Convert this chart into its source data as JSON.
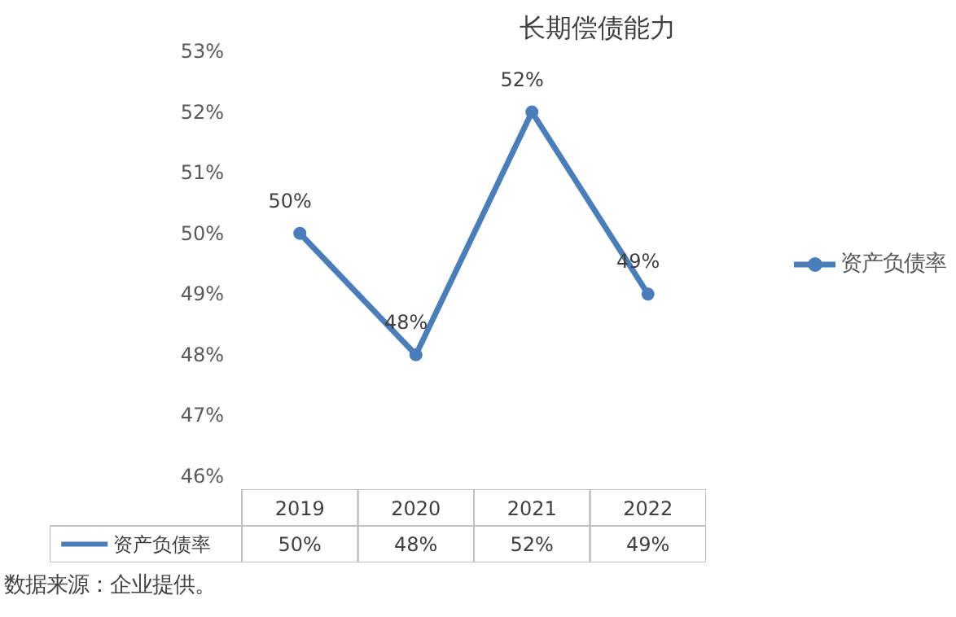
{
  "chart_data": {
    "type": "line",
    "title": "长期偿债能力",
    "categories": [
      "2019",
      "2020",
      "2021",
      "2022"
    ],
    "series": [
      {
        "name": "资产负债率",
        "color": "#4a7ebb",
        "values": [
          50,
          48,
          52,
          49
        ],
        "value_labels": [
          "50%",
          "48%",
          "52%",
          "49%"
        ]
      }
    ],
    "ylim": [
      46,
      53
    ],
    "yticks": [
      {
        "value": 46,
        "label": "46%"
      },
      {
        "value": 47,
        "label": "47%"
      },
      {
        "value": 48,
        "label": "48%"
      },
      {
        "value": 49,
        "label": "49%"
      },
      {
        "value": 50,
        "label": "50%"
      },
      {
        "value": 51,
        "label": "51%"
      },
      {
        "value": 52,
        "label": "52%"
      },
      {
        "value": 53,
        "label": "53%"
      }
    ],
    "grid": false,
    "legend": "right",
    "marker": "circle",
    "line_style": "solid",
    "annotations": [
      "数据来源：企业提供。"
    ]
  }
}
